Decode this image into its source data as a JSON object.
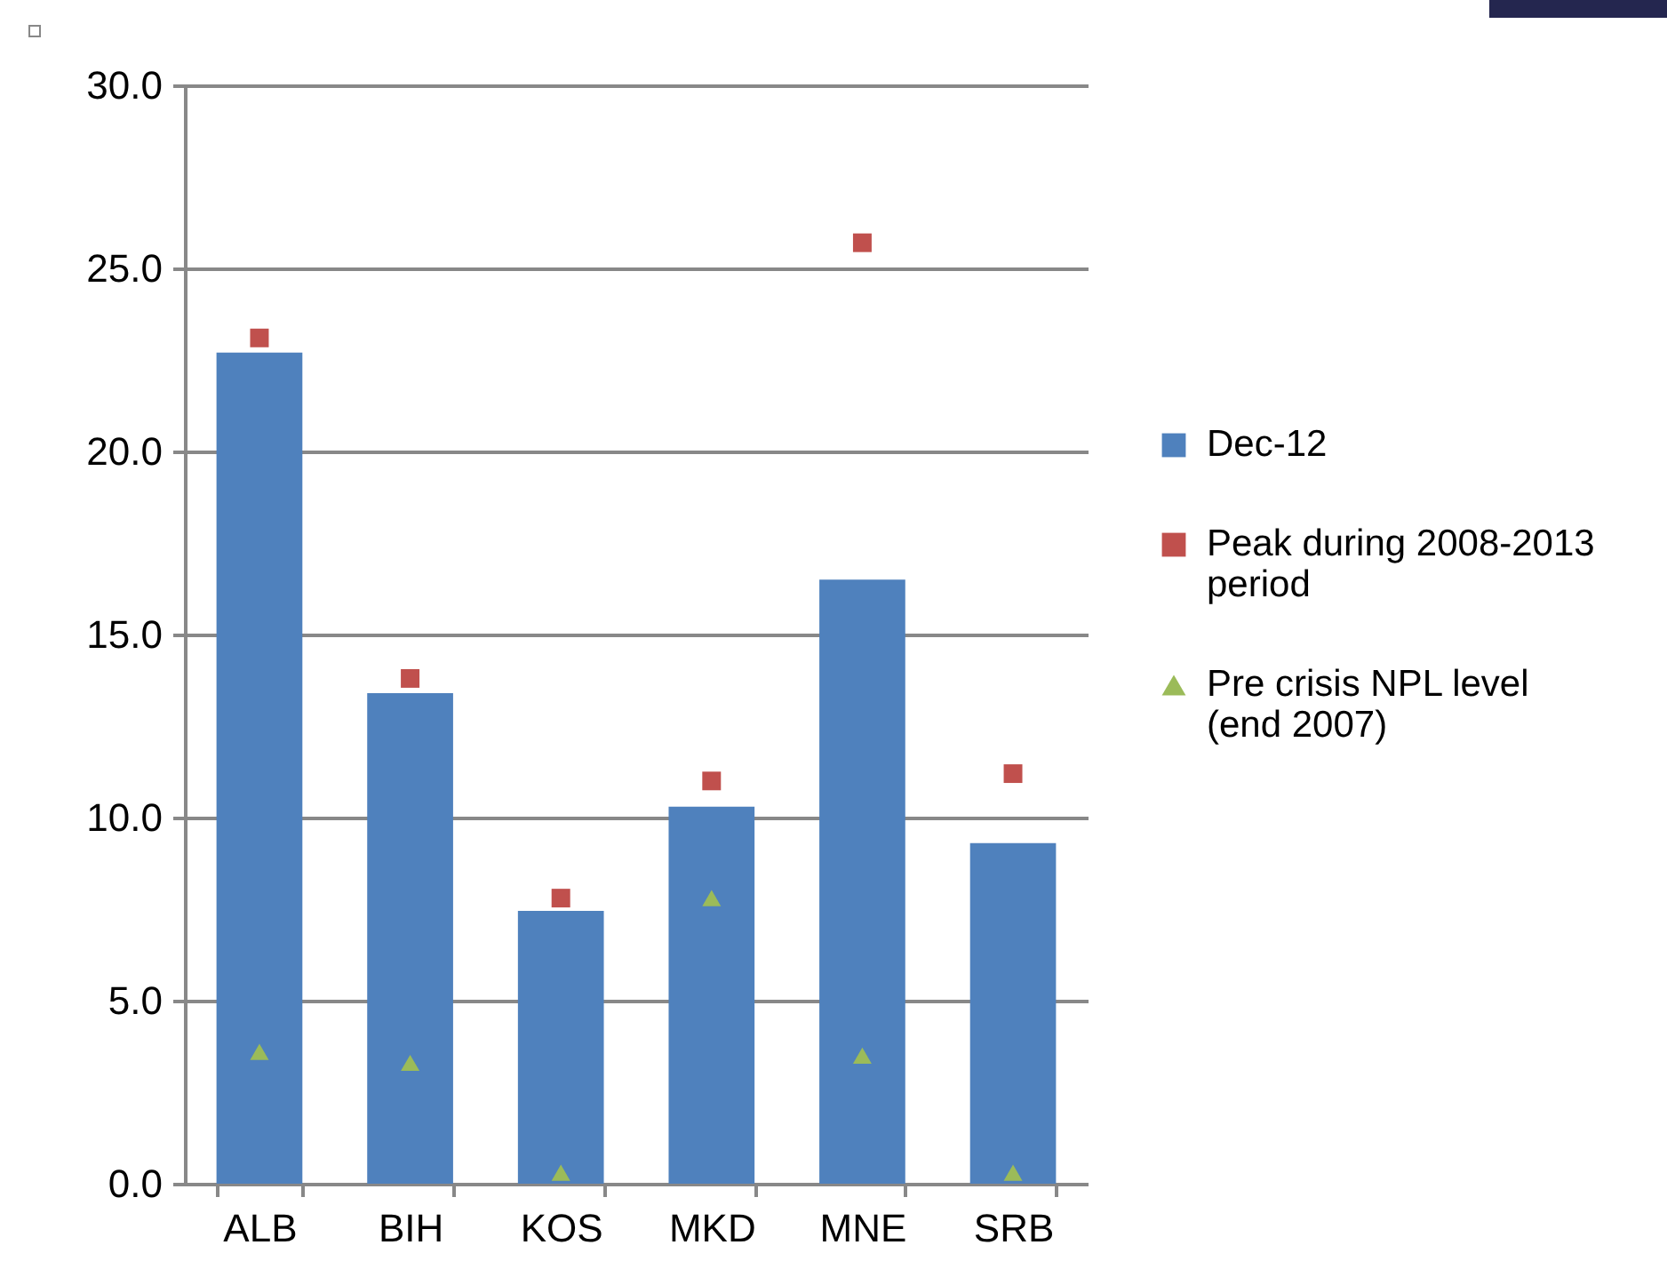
{
  "chart_data": {
    "type": "bar",
    "categories": [
      "ALB",
      "BIH",
      "KOS",
      "MKD",
      "MNE",
      "SRB"
    ],
    "series": [
      {
        "name": "Dec-12",
        "type": "bar",
        "color": "#4f81bd",
        "values": [
          22.7,
          13.4,
          7.45,
          10.3,
          16.5,
          9.3
        ]
      },
      {
        "name": "Peak during 2008-2013 period",
        "type": "scatter",
        "marker": "square",
        "color": "#c0504d",
        "values": [
          23.1,
          13.8,
          7.8,
          11.0,
          25.7,
          11.2
        ]
      },
      {
        "name": "Pre crisis NPL level (end 2007)",
        "type": "scatter",
        "marker": "triangle",
        "color": "#9bbb59",
        "values": [
          3.6,
          3.3,
          0.3,
          7.8,
          3.5,
          0.3
        ]
      }
    ],
    "ylim": [
      0,
      30
    ],
    "yticks": [
      {
        "value": 0,
        "label": "0.0"
      },
      {
        "value": 5,
        "label": "5.0"
      },
      {
        "value": 10,
        "label": "10.0"
      },
      {
        "value": 15,
        "label": "15.0"
      },
      {
        "value": 20,
        "label": "20.0"
      },
      {
        "value": 25,
        "label": "25.0"
      },
      {
        "value": 30,
        "label": "30.0"
      }
    ],
    "grid": "y",
    "legend": "right"
  }
}
